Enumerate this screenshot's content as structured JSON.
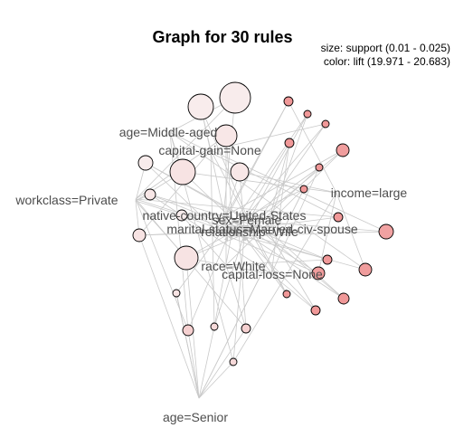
{
  "title": "Graph for 30 rules",
  "legend": {
    "size_line": "size: support (0.01 - 0.025)",
    "color_line": "color: lift (19.971 - 20.683)"
  },
  "colors": {
    "low_lift": "#f8ecec",
    "high_lift": "#ef8f8f",
    "edge": "#c9c9c9"
  },
  "items": [
    {
      "id": "age-middle-aged",
      "label": "age=Middle-aged"
    },
    {
      "id": "capital-gain-none",
      "label": "capital-gain=None"
    },
    {
      "id": "workclass-private",
      "label": "workclass=Private"
    },
    {
      "id": "income-large",
      "label": "income=large"
    },
    {
      "id": "native-country-us",
      "label": "native-country=United-States"
    },
    {
      "id": "sex-female",
      "label": "sex=Female"
    },
    {
      "id": "marital-status",
      "label": "marital-status=Married-civ-spouse"
    },
    {
      "id": "relationship-wife",
      "label": "relationship=Wife"
    },
    {
      "id": "race-white",
      "label": "race=White"
    },
    {
      "id": "capital-loss-none",
      "label": "capital-loss=None"
    },
    {
      "id": "age-senior",
      "label": "age=Senior"
    }
  ],
  "rules_count": 30
}
